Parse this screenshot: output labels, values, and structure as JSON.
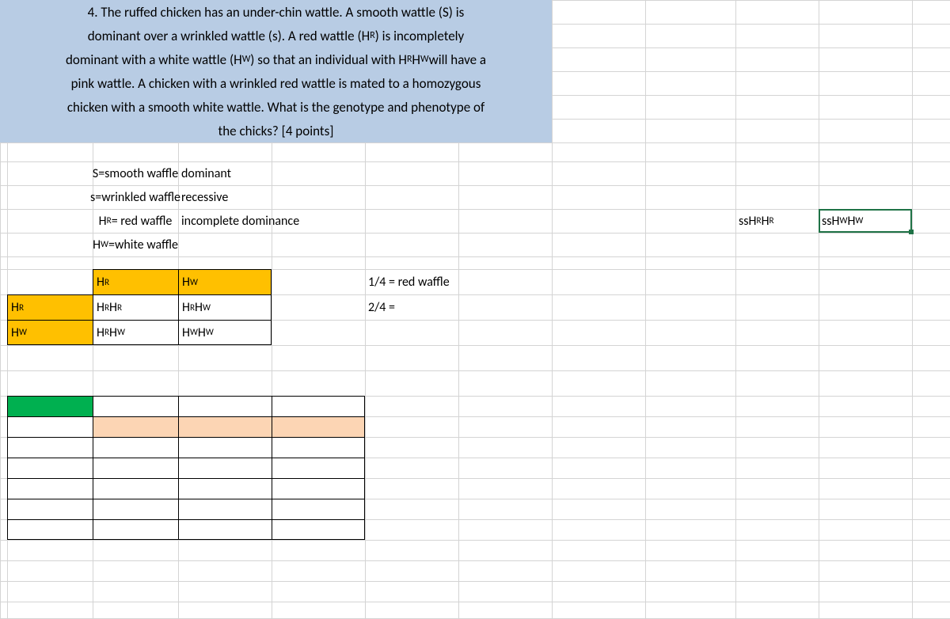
{
  "layout": {
    "col_edges": [
      0,
      9,
      117,
      225,
      343,
      461,
      579,
      697,
      815,
      929,
      1034,
      1152,
      1200
    ],
    "row_edges": [
      0,
      30,
      60,
      90,
      120,
      150,
      180,
      204,
      234,
      264,
      294,
      324,
      340,
      372,
      404,
      436,
      468,
      500,
      526,
      552,
      578,
      604,
      630,
      656,
      682,
      708,
      734,
      760,
      781
    ],
    "hide_grid_cols_before": 7,
    "hide_top_rows_until": 7
  },
  "colors": {
    "highlight": "#b8cce4",
    "yellow": "#ffc000",
    "green": "#00b050",
    "peach": "#fcd5b4",
    "grid": "#d4d4d4",
    "selection": "#1f7246",
    "black": "#000000"
  },
  "problem": {
    "lines": [
      "4. The ruffed chicken has an under-chin wattle. A smooth wattle (S) is",
      "dominant over a wrinkled wattle (s). A red wattle (H^R) is incompletely",
      "dominant with a white wattle (H^W) so that an individual with H^R H^W will have a",
      "pink wattle.  A chicken with a wrinkled red wattle is mated to a homozygous",
      "chicken with a smooth white wattle. What is the genotype and phenotype of",
      "the chicks? [4 points]"
    ]
  },
  "legend": {
    "rows": [
      {
        "left": "S=smooth waffle",
        "right": "dominant",
        "left_html": "S=smooth waffle"
      },
      {
        "left": "s=wrinkled waffle",
        "right": "recessive",
        "left_html": "s=wrinkled waffle"
      },
      {
        "left": "H^R= red waffle",
        "right": "incomplete dominance",
        "left_html": "H<sup>R</sup>= red waffle"
      },
      {
        "left": "H^W=white waffle",
        "right": "",
        "left_html": "H<sup>W</sup>=white waffle"
      }
    ]
  },
  "genotypes_right": {
    "cell1_html": "ssH<sup>R</sup>H<sup>R</sup>",
    "cell2_html": "ssH<sup>W</sup>H<sup>W</sup>"
  },
  "punnett": {
    "col_headers": [
      "H^R",
      "H^W"
    ],
    "col_headers_html": [
      "H<sup>R</sup>",
      "H<sup>W</sup>"
    ],
    "row_headers": [
      "H^R",
      "H^W"
    ],
    "row_headers_html": [
      "H<sup>R</sup>",
      "H<sup>W</sup>"
    ],
    "cells": [
      [
        "H^R H^R",
        "H^R H^W"
      ],
      [
        "H^R H^W",
        "H^W H^W"
      ]
    ],
    "cells_html": [
      [
        "H<sup>R</sup>H<sup>R</sup>",
        "H<sup>R</sup>H<sup>W</sup>"
      ],
      [
        "H<sup>R</sup>H<sup>W</sup>",
        "H<sup>W</sup>H<sup>W</sup>"
      ]
    ]
  },
  "results": {
    "line1": "1/4 = red waffle",
    "line2": "2/4 ="
  },
  "table2": {
    "rows": 7,
    "cols": 4
  }
}
